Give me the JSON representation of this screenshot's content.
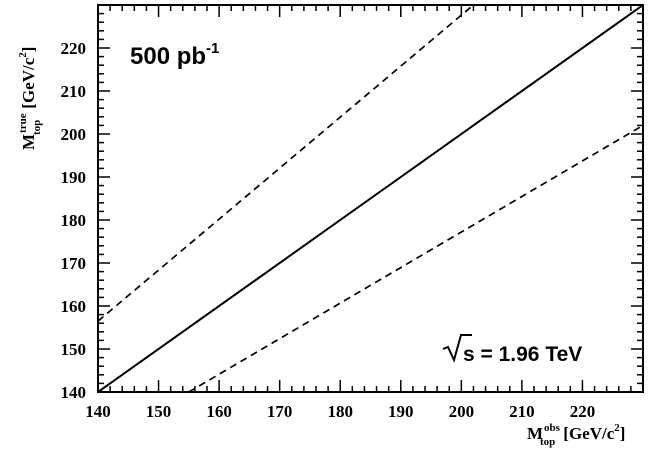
{
  "chart_data": {
    "type": "line",
    "xlabel": {
      "main": "M",
      "sub": "top",
      "sup": "obs",
      "unit": "[GeV/c",
      "unit_sup": "2",
      "unit_close": "]"
    },
    "ylabel": {
      "main": "M",
      "sub": "top",
      "sup": "true",
      "unit": "[GeV/c",
      "unit_sup": "2",
      "unit_close": "]"
    },
    "xlim": [
      140,
      230
    ],
    "ylim": [
      140,
      230
    ],
    "xticks": [
      140,
      150,
      160,
      170,
      180,
      190,
      200,
      210,
      220
    ],
    "yticks": [
      140,
      150,
      160,
      170,
      180,
      190,
      200,
      210,
      220
    ],
    "grid": false,
    "series": [
      {
        "style": "solid",
        "x": [
          140,
          230
        ],
        "y": [
          140,
          230
        ]
      },
      {
        "style": "dashed",
        "x": [
          140,
          202
        ],
        "y": [
          156.5,
          230
        ]
      },
      {
        "style": "dashed",
        "x": [
          155,
          230
        ],
        "y": [
          140,
          202
        ]
      }
    ],
    "annotations": {
      "lumi": {
        "text": "500 pb",
        "sup": "-1"
      },
      "energy": {
        "text": "s = 1.96  TeV"
      }
    }
  }
}
